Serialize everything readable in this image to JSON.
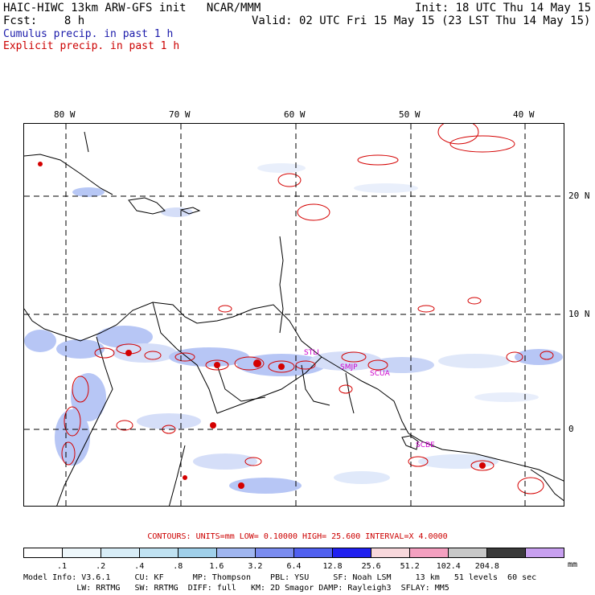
{
  "header": {
    "line1_left": "HAIC-HIWC 13km ARW-GFS init   NCAR/MMM",
    "line1_right": "Init: 18 UTC Thu 14 May 15",
    "line2_left": "Fcst:    8 h",
    "line2_right": "Valid: 02 UTC Fri 15 May 15 (23 LST Thu 14 May 15)",
    "line3": "Cumulus precip. in past 1 h",
    "line4": "Explicit precip. in past 1 h"
  },
  "map": {
    "lon_labels": [
      "80 W",
      "70 W",
      "60 W",
      "50 W",
      "40 W"
    ],
    "lat_labels": [
      "20 N",
      "10 N",
      "0"
    ],
    "station_labels": [
      "STLI",
      "SMJP",
      "SCUA",
      "SCBE"
    ],
    "colors": {
      "cumulus": "#9fb4f2",
      "explicit": "#d40000",
      "coast": "#000000",
      "stations": "#cc00cc"
    }
  },
  "contours_line": "CONTOURS:  UNITS=mm  LOW= 0.10000     HIGH=  25.600     INTERVAL=X  4.0000",
  "colorbar": {
    "colors": [
      "#ffffff",
      "#eef7fb",
      "#d8edf7",
      "#c0e2f2",
      "#a0d0ea",
      "#a0b6f0",
      "#7a8cf0",
      "#5060f0",
      "#2020f0",
      "#f8d8dc",
      "#f4a0c0",
      "#c8c8c8",
      "#3a3a3a",
      "#c8a0f0"
    ],
    "ticks": [
      ".1",
      ".2",
      ".4",
      ".8",
      "1.6",
      "3.2",
      "6.4",
      "12.8",
      "25.6",
      "51.2",
      "102.4",
      "204.8"
    ],
    "units": "mm"
  },
  "footer": {
    "line1": "Model Info: V3.6.1     CU: KF      MP: Thompson    PBL: YSU     SF: Noah LSM     13 km   51 levels  60 sec",
    "line2": "           LW: RRTMG   SW: RRTMG  DIFF: full   KM: 2D Smagor DAMP: Rayleigh3  SFLAY: MM5"
  }
}
